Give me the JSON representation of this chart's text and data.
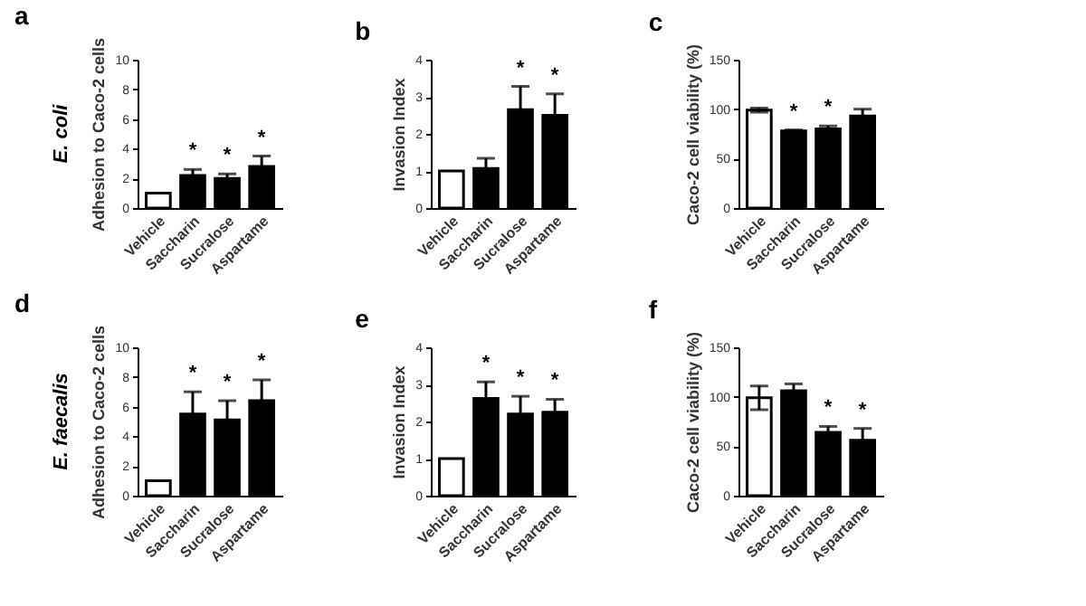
{
  "chart_data": [
    {
      "type": "bar",
      "title": "a",
      "ylabel": "Adhesion to Caco-2 cells",
      "categories": [
        "Vehicle",
        "Saccharin",
        "Sucralose",
        "Aspartame"
      ],
      "values": [
        1.0,
        2.2,
        2.0,
        2.8
      ],
      "errors": [
        null,
        0.4,
        0.3,
        0.7
      ],
      "colors": [
        "#ffffff",
        "#000000",
        "#000000",
        "#000000"
      ],
      "ylim": [
        0,
        10
      ],
      "yticks": [
        0,
        2,
        4,
        6,
        8,
        10
      ],
      "grid": false,
      "annotations": [
        "E. coli",
        {
          "text": "*",
          "x": "Saccharin",
          "y": 2.2
        },
        {
          "text": "*",
          "x": "Sucralose",
          "y": 2.0
        },
        {
          "text": "*",
          "x": "Aspartame",
          "y": 2.8
        }
      ]
    },
    {
      "type": "bar",
      "title": "b",
      "ylabel": "Invasion Index",
      "categories": [
        "Vehicle",
        "Saccharin",
        "Sucralose",
        "Aspartame"
      ],
      "values": [
        1.0,
        1.07,
        2.65,
        2.5
      ],
      "errors": [
        null,
        0.27,
        0.63,
        0.58
      ],
      "colors": [
        "#ffffff",
        "#000000",
        "#000000",
        "#000000"
      ],
      "ylim": [
        0,
        4
      ],
      "yticks": [
        0,
        1,
        2,
        3,
        4
      ],
      "grid": false,
      "annotations": [
        {
          "text": "*",
          "x": "Sucralose",
          "y": 2.65
        },
        {
          "text": "*",
          "x": "Aspartame",
          "y": 2.5
        }
      ]
    },
    {
      "type": "bar",
      "title": "c",
      "ylabel": "Caco-2 cell viability (%)",
      "categories": [
        "Vehicle",
        "Saccharin",
        "Sucralose",
        "Aspartame"
      ],
      "values": [
        99,
        78,
        80,
        93
      ],
      "errors": [
        2,
        1,
        3,
        7
      ],
      "colors": [
        "#ffffff",
        "#000000",
        "#000000",
        "#000000"
      ],
      "ylim": [
        0,
        150
      ],
      "yticks": [
        0,
        50,
        100,
        150
      ],
      "grid": false,
      "annotations": [
        {
          "text": "*",
          "x": "Saccharin",
          "y": 78
        },
        {
          "text": "*",
          "x": "Sucralose",
          "y": 80
        }
      ]
    },
    {
      "type": "bar",
      "title": "d",
      "ylabel": "Adhesion to Caco-2 cells",
      "categories": [
        "Vehicle",
        "Saccharin",
        "Sucralose",
        "Aspartame"
      ],
      "values": [
        1.0,
        5.5,
        5.1,
        6.4
      ],
      "errors": [
        null,
        1.5,
        1.3,
        1.4
      ],
      "colors": [
        "#ffffff",
        "#000000",
        "#000000",
        "#000000"
      ],
      "ylim": [
        0,
        10
      ],
      "yticks": [
        0,
        2,
        4,
        6,
        8,
        10
      ],
      "grid": false,
      "annotations": [
        "E. faecalis",
        {
          "text": "*",
          "x": "Saccharin",
          "y": 5.5
        },
        {
          "text": "*",
          "x": "Sucralose",
          "y": 5.1
        },
        {
          "text": "*",
          "x": "Aspartame",
          "y": 6.4
        }
      ]
    },
    {
      "type": "bar",
      "title": "e",
      "ylabel": "Invasion Index",
      "categories": [
        "Vehicle",
        "Saccharin",
        "Sucralose",
        "Aspartame"
      ],
      "values": [
        1.0,
        2.62,
        2.2,
        2.25
      ],
      "errors": [
        null,
        0.45,
        0.48,
        0.35
      ],
      "colors": [
        "#ffffff",
        "#000000",
        "#000000",
        "#000000"
      ],
      "ylim": [
        0,
        4
      ],
      "yticks": [
        0,
        1,
        2,
        3,
        4
      ],
      "grid": false,
      "annotations": [
        {
          "text": "*",
          "x": "Saccharin",
          "y": 2.62
        },
        {
          "text": "*",
          "x": "Sucralose",
          "y": 2.2
        },
        {
          "text": "*",
          "x": "Aspartame",
          "y": 2.25
        }
      ]
    },
    {
      "type": "bar",
      "title": "f",
      "ylabel": "Caco-2 cell viability (%)",
      "categories": [
        "Vehicle",
        "Saccharin",
        "Sucralose",
        "Aspartame"
      ],
      "values": [
        99,
        106,
        64,
        56
      ],
      "errors": [
        12,
        7,
        6,
        12
      ],
      "colors": [
        "#ffffff",
        "#000000",
        "#000000",
        "#000000"
      ],
      "ylim": [
        0,
        150
      ],
      "yticks": [
        0,
        50,
        100,
        150
      ],
      "grid": false,
      "annotations": [
        {
          "text": "*",
          "x": "Sucralose",
          "y": 64
        },
        {
          "text": "*",
          "x": "Aspartame",
          "y": 56
        }
      ]
    }
  ]
}
